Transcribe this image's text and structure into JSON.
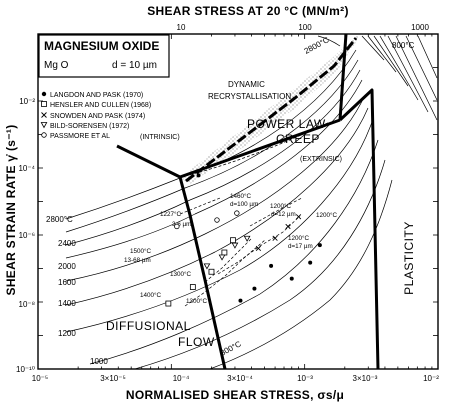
{
  "chart_data": {
    "type": "line",
    "title": "",
    "top_axis": {
      "label": "SHEAR STRESS AT 20 °C (MN/m²)",
      "ticks": [
        "10",
        "100",
        "1000"
      ]
    },
    "xlabel": "NORMALISED SHEAR STRESS, σs/μ",
    "ylabel": "SHEAR STRAIN RATE γ̇ (s⁻¹)",
    "x_scale": "log",
    "y_scale": "log",
    "xlim": [
      1e-05,
      0.01
    ],
    "ylim": [
      1e-10,
      1
    ],
    "x_ticks": [
      "10⁻⁵",
      "3×10⁻⁵",
      "10⁻⁴",
      "3×10⁻⁴",
      "10⁻³",
      "3×10⁻³",
      "10⁻²"
    ],
    "y_ticks": [
      "10⁻¹⁰",
      "10⁻⁸",
      "10⁻⁶",
      "10⁻⁴",
      "10⁻²"
    ],
    "legend": {
      "title": "MAGNESIUM OXIDE",
      "material": "Mg O",
      "grain_size": "d = 10 µm",
      "entries": [
        {
          "marker": "filled-circle",
          "label": "LANGDON AND PASK (1970)"
        },
        {
          "marker": "open-square",
          "label": "HENSLER AND CULLEN (1968)"
        },
        {
          "marker": "cross",
          "label": "SNOWDEN AND PASK (1974)"
        },
        {
          "marker": "open-triangle-down",
          "label": "BILD-SORENSEN (1972)"
        },
        {
          "marker": "open-circle",
          "label": "PASSMORE ET AL"
        }
      ]
    },
    "regions": {
      "diffusional": [
        "DIFFUSIONAL",
        "FLOW"
      ],
      "power_law": [
        "POWER LAW",
        "CREEP"
      ],
      "plasticity": "PLASTICITY",
      "dynamic": [
        "DYNAMIC",
        "RECRYSTALLISATION"
      ],
      "intrinsic": "(INTRINSIC)",
      "extrinsic": "(EXTRINSIC)"
    },
    "contours": [
      {
        "label": "2800°C"
      },
      {
        "label": "2400"
      },
      {
        "label": "2000"
      },
      {
        "label": "1600"
      },
      {
        "label": "1400"
      },
      {
        "label": "1200"
      },
      {
        "label": "1000"
      },
      {
        "label": "800°C"
      }
    ],
    "top_contours": {
      "upper": "800°C",
      "upper_left": "2800°C"
    },
    "annotations": [
      {
        "text": "1227°C"
      },
      {
        "text": "3.6 µm"
      },
      {
        "text": "1460°C"
      },
      {
        "text": "d=100 µm"
      },
      {
        "text": "1200°C"
      },
      {
        "text": "d=12 µm"
      },
      {
        "text": "1200°C"
      },
      {
        "text": "1500°C"
      },
      {
        "text": "13-68 µm"
      },
      {
        "text": "1200°C"
      },
      {
        "text": "d=17 µm"
      },
      {
        "text": "1300°C"
      },
      {
        "text": "1400°C"
      },
      {
        "text": "1300°C"
      }
    ],
    "bottom_contour_label": "800°C",
    "boundaries": [
      {
        "name": "diffusional-plc",
        "points": [
          [
            8e-05,
            0.003
          ],
          [
            0.00012,
            8e-05
          ]
        ]
      },
      {
        "name": "diffusional-flow-lower",
        "points": [
          [
            0.00012,
            8e-05
          ],
          [
            0.00015,
            2e-06
          ],
          [
            0.00019,
            1e-08
          ],
          [
            0.00029,
            1e-10
          ]
        ]
      },
      {
        "name": "plc-plasticity",
        "points": [
          [
            0.00012,
            8e-05
          ],
          [
            0.0025,
            0.001
          ],
          [
            0.0028,
            0.1
          ],
          [
            0.003,
            1
          ]
        ]
      },
      {
        "name": "plasticity-vertical",
        "points": [
          [
            0.0025,
            0.001
          ],
          [
            0.0028,
            1e-10
          ]
        ]
      }
    ],
    "data_points": [
      {
        "series": "LANGDON AND PASK (1970)",
        "marker": "filled-circle",
        "x": 0.00033,
        "y": 1.1e-08
      },
      {
        "series": "LANGDON AND PASK (1970)",
        "marker": "filled-circle",
        "x": 0.00042,
        "y": 2.5e-08
      },
      {
        "series": "LANGDON AND PASK (1970)",
        "marker": "filled-circle",
        "x": 0.00056,
        "y": 1.2e-07
      },
      {
        "series": "LANGDON AND PASK (1970)",
        "marker": "filled-circle",
        "x": 0.0008,
        "y": 5e-08
      },
      {
        "series": "LANGDON AND PASK (1970)",
        "marker": "filled-circle",
        "x": 0.0011,
        "y": 1.5e-07
      },
      {
        "series": "LANGDON AND PASK (1970)",
        "marker": "filled-circle",
        "x": 0.0013,
        "y": 5e-07
      },
      {
        "series": "LANGDON AND PASK (1970)",
        "marker": "filled-circle",
        "x": 0.00016,
        "y": 6e-05
      },
      {
        "series": "HENSLER AND CULLEN (1968)",
        "marker": "open-square",
        "x": 0.000145,
        "y": 2.8e-08
      },
      {
        "series": "HENSLER AND CULLEN (1968)",
        "marker": "open-square",
        "x": 0.0002,
        "y": 8e-08
      },
      {
        "series": "HENSLER AND CULLEN (1968)",
        "marker": "open-square",
        "x": 0.00025,
        "y": 3e-07
      },
      {
        "series": "HENSLER AND CULLEN (1968)",
        "marker": "open-square",
        "x": 0.00029,
        "y": 7e-07
      },
      {
        "series": "HENSLER AND CULLEN (1968)",
        "marker": "open-square",
        "x": 9.5e-05,
        "y": 9e-09
      },
      {
        "series": "SNOWDEN AND PASK (1974)",
        "marker": "cross",
        "x": 0.00045,
        "y": 4e-07
      },
      {
        "series": "SNOWDEN AND PASK (1974)",
        "marker": "cross",
        "x": 0.0006,
        "y": 8e-07
      },
      {
        "series": "SNOWDEN AND PASK (1974)",
        "marker": "cross",
        "x": 0.00075,
        "y": 1.8e-06
      },
      {
        "series": "SNOWDEN AND PASK (1974)",
        "marker": "cross",
        "x": 0.0009,
        "y": 3.5e-06
      },
      {
        "series": "BILD-SORENSEN (1972)",
        "marker": "open-triangle-down",
        "x": 0.000185,
        "y": 1.2e-07
      },
      {
        "series": "BILD-SORENSEN (1972)",
        "marker": "open-triangle-down",
        "x": 0.00024,
        "y": 2.2e-07
      },
      {
        "series": "BILD-SORENSEN (1972)",
        "marker": "open-triangle-down",
        "x": 0.0003,
        "y": 5e-07
      },
      {
        "series": "BILD-SORENSEN (1972)",
        "marker": "open-triangle-down",
        "x": 0.00037,
        "y": 8e-07
      },
      {
        "series": "PASSMORE ET AL",
        "marker": "open-circle",
        "x": 0.00011,
        "y": 1.8e-06
      },
      {
        "series": "PASSMORE ET AL",
        "marker": "open-circle",
        "x": 0.00022,
        "y": 2.8e-06
      },
      {
        "series": "PASSMORE ET AL",
        "marker": "open-circle",
        "x": 0.00031,
        "y": 4.5e-06
      }
    ],
    "grid": false,
    "legend_position": "top-left"
  }
}
